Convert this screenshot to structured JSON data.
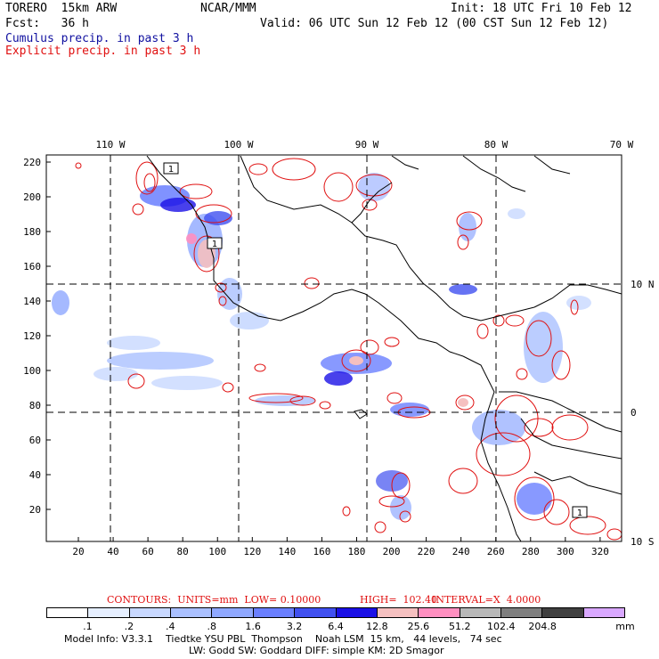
{
  "header": {
    "model": "TORERO  15km ARW",
    "org": "NCAR/MMM",
    "init": "Init: 18 UTC Fri 10 Feb 12",
    "fcst": "Fcst:   36 h",
    "valid": "Valid: 06 UTC Sun 12 Feb 12 (00 CST Sun 12 Feb 12)",
    "line_blue": "Cumulus precip. in past 3 h",
    "line_red": "Explicit precip. in past 3 h"
  },
  "axes": {
    "top_labels": [
      "110 W",
      "100 W",
      "90 W",
      "80 W",
      "70 W"
    ],
    "right_labels": [
      "10 N",
      "0",
      "10 S"
    ],
    "y_ticks": [
      "220",
      "200",
      "180",
      "160",
      "140",
      "120",
      "100",
      "80",
      "60",
      "40",
      "20"
    ],
    "x_ticks": [
      "20",
      "40",
      "60",
      "80",
      "100",
      "120",
      "140",
      "160",
      "180",
      "200",
      "220",
      "240",
      "260",
      "280",
      "300",
      "320"
    ]
  },
  "contour_caption": {
    "contours": "CONTOURS:  UNITS=mm  LOW= 0.10000",
    "high": "HIGH=  102.40",
    "interval": "INTERVAL=X  4.0000"
  },
  "legend": {
    "colors": [
      "#ffffff",
      "#e6efff",
      "#c8d8ff",
      "#aac0ff",
      "#8fa8ff",
      "#6a7fff",
      "#4050f0",
      "#1a10e6",
      "#f5c0c0",
      "#ff8fc0",
      "#b8b8b8",
      "#7f7f7f",
      "#404040",
      "#d9a8ff"
    ],
    "ticks": [
      ".1",
      ".2",
      ".4",
      ".8",
      "1.6",
      "3.2",
      "6.4",
      "12.8",
      "25.6",
      "51.2",
      "102.4",
      "204.8"
    ],
    "unit": "mm"
  },
  "footer": {
    "line1": "Model Info: V3.3.1    Tiedtke YSU PBL  Thompson    Noah LSM  15 km,   44 levels,   74 sec",
    "line2": "LW: Godd SW: Goddard DIFF: simple KM: 2D Smagor"
  },
  "map_labels": {
    "box_label": "1"
  }
}
